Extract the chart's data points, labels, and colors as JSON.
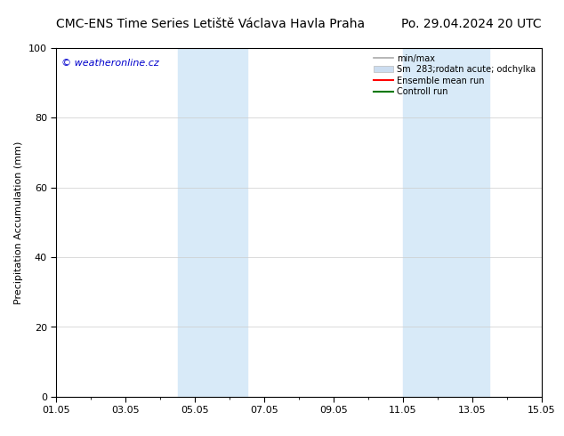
{
  "title_left": "CMC-ENS Time Series Letiště Václava Havla Praha",
  "title_right": "Po. 29.04.2024 20 UTC",
  "ylabel": "Precipitation Accumulation (mm)",
  "watermark": "© weatheronline.cz",
  "watermark_color": "#0000cc",
  "ylim": [
    0,
    100
  ],
  "yticks": [
    0,
    20,
    40,
    60,
    80,
    100
  ],
  "xtick_labels": [
    "01.05",
    "03.05",
    "05.05",
    "07.05",
    "09.05",
    "11.05",
    "13.05",
    "15.05"
  ],
  "xtick_positions": [
    0,
    2,
    4,
    6,
    8,
    10,
    12,
    14
  ],
  "xlim": [
    0,
    14
  ],
  "shaded_bands": [
    {
      "x_start": 3.5,
      "x_end": 4.5,
      "color": "#d8eaf8"
    },
    {
      "x_start": 4.5,
      "x_end": 5.5,
      "color": "#d8eaf8"
    },
    {
      "x_start": 10.0,
      "x_end": 11.0,
      "color": "#d8eaf8"
    },
    {
      "x_start": 11.0,
      "x_end": 12.5,
      "color": "#d8eaf8"
    }
  ],
  "legend_entries": [
    {
      "label": "min/max",
      "color": "#aaaaaa",
      "type": "line",
      "lw": 1.2
    },
    {
      "label": "Sm  283;rodatn acute; odchylka",
      "color": "#ccddf0",
      "type": "patch"
    },
    {
      "label": "Ensemble mean run",
      "color": "#ff0000",
      "type": "line",
      "lw": 1.5
    },
    {
      "label": "Controll run",
      "color": "#007700",
      "type": "line",
      "lw": 1.5
    }
  ],
  "background_color": "#ffffff",
  "plot_bg_color": "#ffffff",
  "title_fontsize": 10,
  "axis_fontsize": 8,
  "tick_fontsize": 8,
  "legend_fontsize": 7
}
